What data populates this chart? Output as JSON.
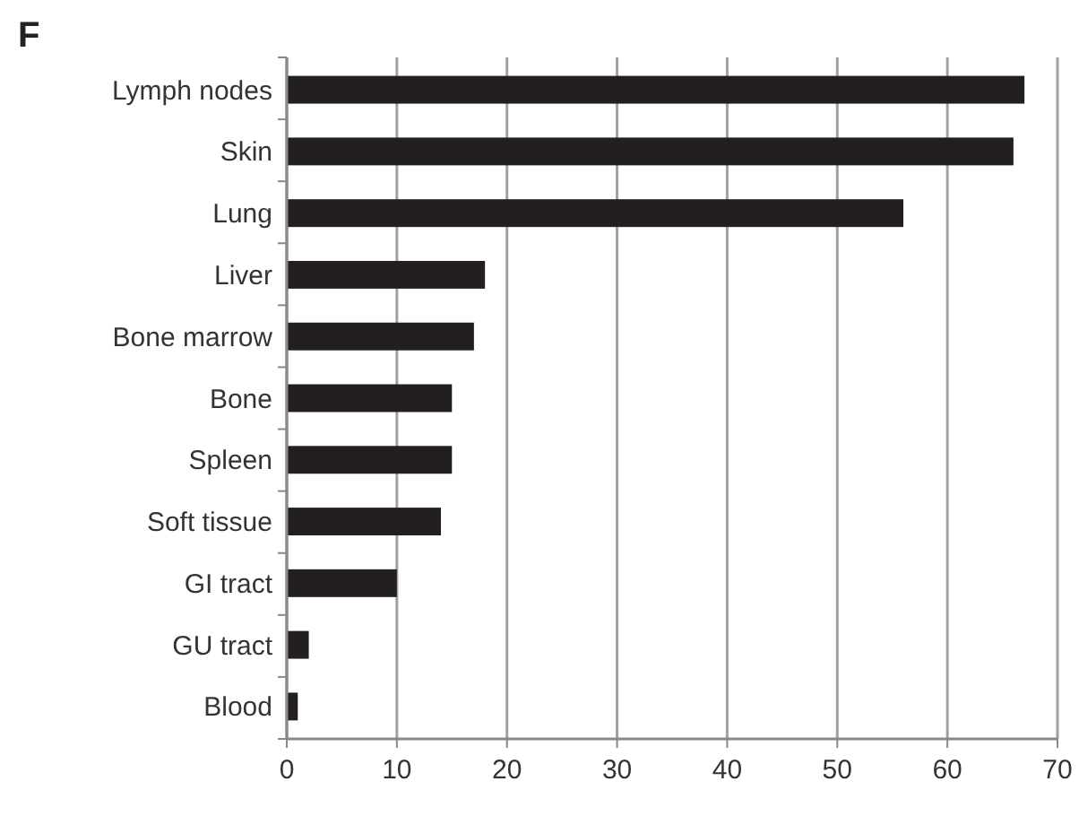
{
  "chart_data": {
    "type": "bar",
    "orientation": "horizontal",
    "title": "F",
    "categories": [
      "Lymph nodes",
      "Skin",
      "Lung",
      "Liver",
      "Bone marrow",
      "Bone",
      "Spleen",
      "Soft tissue",
      "GI tract",
      "GU tract",
      "Blood"
    ],
    "values": [
      67,
      66,
      56,
      18,
      17,
      15,
      15,
      14,
      10,
      2,
      1
    ],
    "color": "#231f20",
    "xlim": [
      0,
      70
    ],
    "xticks": [
      0,
      10,
      20,
      30,
      40,
      50,
      60,
      70
    ],
    "grid": "x"
  }
}
